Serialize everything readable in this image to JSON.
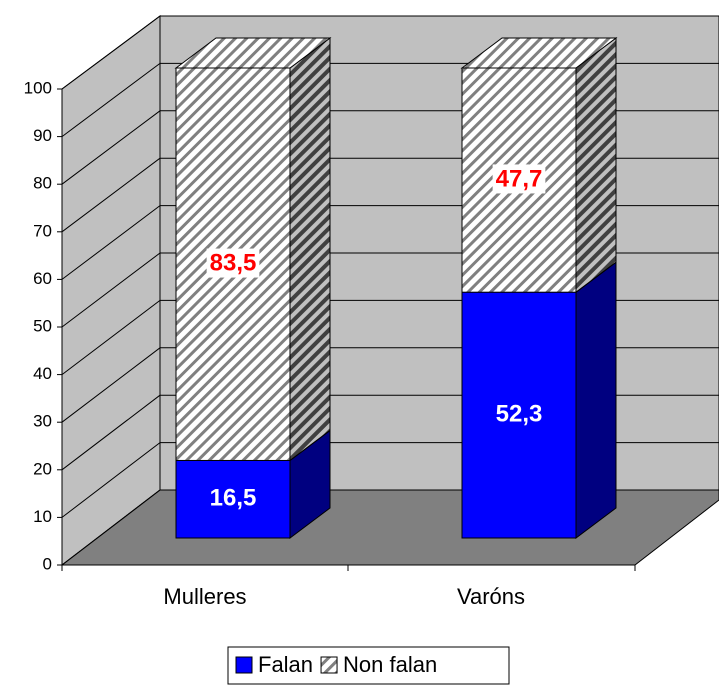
{
  "chart_data": {
    "type": "bar3d_stacked",
    "categories": [
      "Mulleres",
      "Varóns"
    ],
    "series": [
      {
        "name": "Falan",
        "color": "#0000ff",
        "side_color": "#000080",
        "values": [
          16.5,
          52.3
        ],
        "value_labels": [
          "16,5",
          "52,3"
        ],
        "label_color": "#ffffff"
      },
      {
        "name": "Non falan",
        "color": "#ffffff",
        "hatch": true,
        "values": [
          83.5,
          47.7
        ],
        "value_labels": [
          "83,5",
          "47,7"
        ],
        "label_color": "#ff0000"
      }
    ],
    "ylim": [
      0,
      100
    ],
    "yticks": [
      0,
      10,
      20,
      30,
      40,
      50,
      60,
      70,
      80,
      90,
      100
    ],
    "grid": true,
    "legend": "bottom"
  }
}
